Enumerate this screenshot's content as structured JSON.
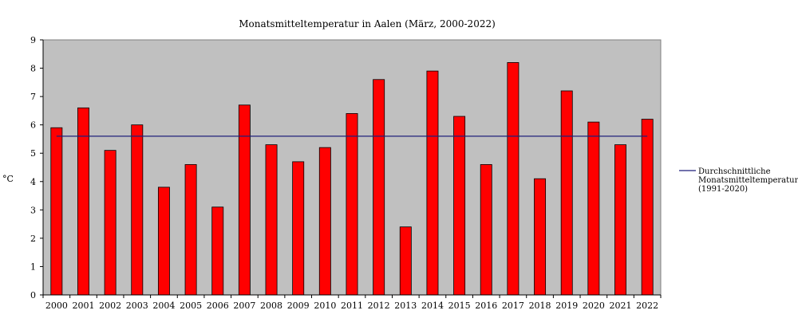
{
  "chart_data": {
    "type": "bar",
    "title": "Monatsmitteltemperatur in Aalen (März, 2000-2022)",
    "xlabel": "",
    "ylabel": "°C",
    "ylim": [
      0,
      9
    ],
    "yticks": [
      0,
      1,
      2,
      3,
      4,
      5,
      6,
      7,
      8,
      9
    ],
    "grid": false,
    "legend_position": "right",
    "categories": [
      "2000",
      "2001",
      "2002",
      "2003",
      "2004",
      "2005",
      "2006",
      "2007",
      "2008",
      "2009",
      "2010",
      "2011",
      "2012",
      "2013",
      "2014",
      "2015",
      "2016",
      "2017",
      "2018",
      "2019",
      "2020",
      "2021",
      "2022"
    ],
    "series": [
      {
        "values": [
          5.9,
          6.6,
          5.1,
          6.0,
          3.8,
          4.6,
          3.1,
          6.7,
          5.3,
          4.7,
          5.2,
          6.4,
          7.6,
          2.4,
          7.9,
          6.3,
          4.6,
          8.2,
          4.1,
          7.2,
          6.1,
          5.3,
          6.2
        ],
        "color": "#ff0000"
      }
    ],
    "reference_line": {
      "value": 5.6,
      "color": "#1f1f7a",
      "legend_lines": [
        "Durchschnittliche",
        "Monatsmitteltemperatur",
        "(1991-2020)"
      ]
    },
    "plot_background": "#c0c0c0"
  }
}
